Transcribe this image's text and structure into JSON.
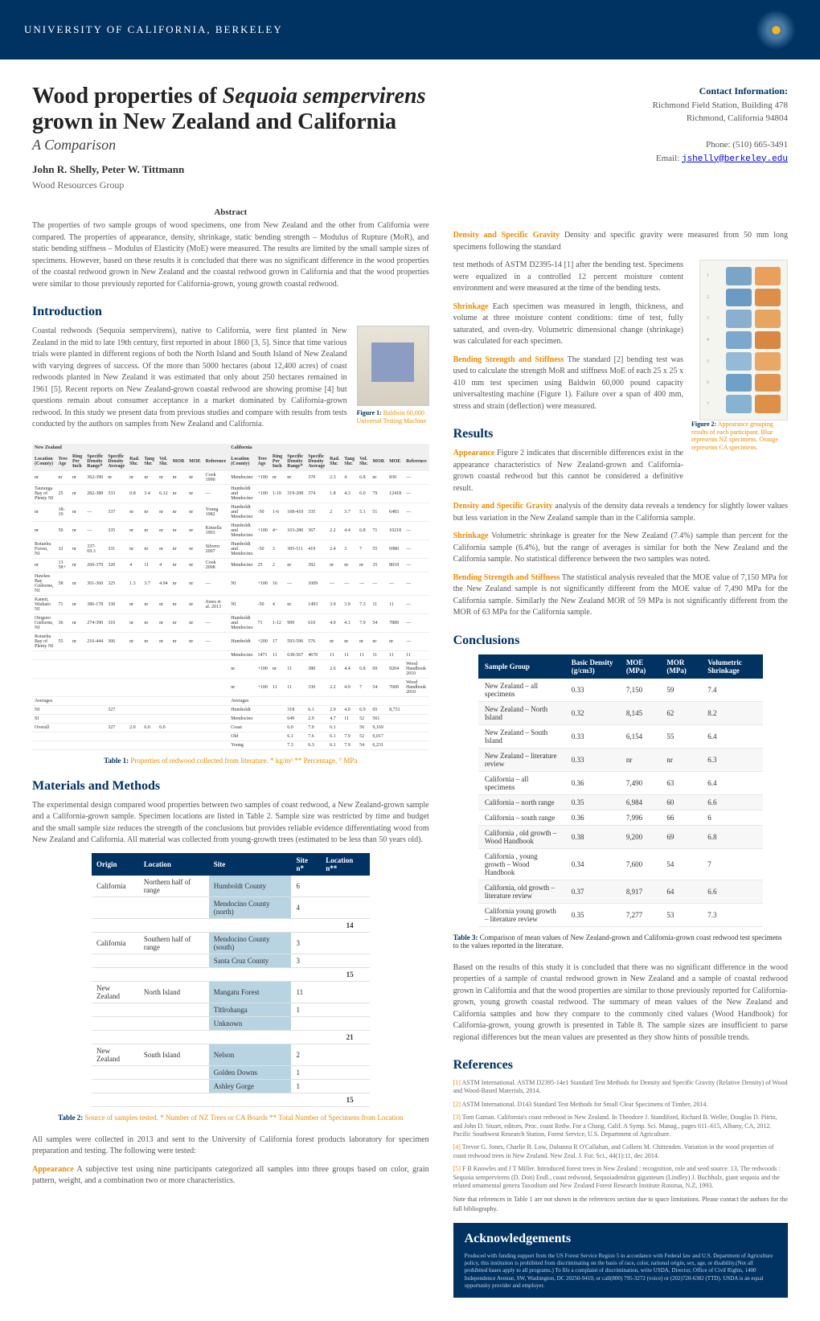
{
  "header": {
    "university": "UNIVERSITY OF CALIFORNIA, BERKELEY"
  },
  "contact": {
    "label": "Contact Information:",
    "addr1": "Richmond Field Station, Building 478",
    "addr2": "Richmond, California 94804",
    "phone": "Phone: (510) 665-3491",
    "email_label": "Email: ",
    "email": "jshelly@berkeley.edu"
  },
  "title_part1": "Wood properties of ",
  "title_species": "Sequoia sempervirens",
  "title_part2": " grown in New Zealand and California",
  "subtitle": "A Comparison",
  "authors": "John R. Shelly, Peter W. Tittmann",
  "affiliation": "Wood Resources Group",
  "abstract_label": "Abstract",
  "abstract": "The properties of two sample groups of wood specimens, one from New Zealand and the other from California were compared. The properties of appearance, density, shrinkage, static bending strength – Modulus of Rupture (MoR), and static bending stiffness – Modulus of Elasticity (MoE) were measured. The results are limited by the small sample sizes of specimens. However, based on these results it is concluded that there was no significant difference in the wood properties of the coastal redwood grown in New Zealand and the coastal redwood grown in California and that the wood properties were similar to those previously reported for California-grown, young growth coastal redwood.",
  "sections": {
    "introduction": "Introduction",
    "materials": "Materials and Methods",
    "results": "Results",
    "conclusions": "Conclusions",
    "references": "References",
    "acknowledgements": "Acknowledgements"
  },
  "introduction": "Coastal redwoods (Sequoia sempervirens), native to California, were first planted in New Zealand in the mid to late 19th century, first reported in about 1860 [3, 5]. Since that time various trials were planted in different regions of both the North Island and South Island of New Zealand with varying degrees of success. Of the more than 5000 hectares (about 12,400 acres) of coast redwoods planted in New Zealand it was estimated that only about 250 hectares remained in 1961 [5]. Recent reports on New Zealand-grown coastal redwood are showing promise [4] but questions remain about consumer acceptance in a market dominated by California-grown redwood. In this study we present data from previous studies and compare with results from tests conducted by the authors on samples from New Zealand and California.",
  "fig1": {
    "label": "Figure 1:",
    "text": "Baldwin 60,000 Universal Testing Machine"
  },
  "fig2": {
    "label": "Figure 2:",
    "text": "Appearance grouping results of each participant. Blue represents NZ specimens. Orange represents CA specimens."
  },
  "table1_caption_label": "Table 1:",
  "table1_caption": " Properties of redwood collected from literature. * kg/m³ ** Percentage, ° MPa",
  "table2_caption_label": "Table 2:",
  "table2_caption": " Source of samples tested. * Number of NZ Trees or CA Boards ** Total Number of Specimens from Location",
  "table3_caption_label": "Table 3:",
  "table3_caption": " Comparison of mean values of New Zealand-grown and California-grown coast redwood test specimens to the values reported in the literature.",
  "materials_p1": "The experimental design compared wood properties between two samples of coast redwood, a New Zealand-grown sample and a California-grown sample. Specimen locations are listed in Table 2. Sample size was restricted by time and budget and the small sample size reduces the strength of the conclusions but provides reliable evidence differentiating wood from New Zealand and California. All material was collected from young-growth trees (estimated to be less than 50 years old).",
  "materials_p2": "All samples were collected in 2013 and sent to the University of California forest products laboratory for specimen preparation and testing. The following were tested:",
  "appearance_label": "Appearance",
  "appearance_text": "   A subjective test using nine participants categorized all samples into three groups based on color, grain pattern, weight, and a combination two or more characteristics.",
  "density_label": "Density and Specific Gravity",
  "density_text": "   Density and specific gravity were measured from 50 mm long specimens following the standard",
  "density_p2": "test methods of ASTM D2395-14 [1] after the bending test. Specimens were equalized in a controlled 12 percent moisture content environment and were measured at the time of the bending tests.",
  "shrinkage_label": "Shrinkage",
  "shrinkage_text": "   Each specimen was measured in length, thickness, and volume at three moisture content conditions: time of test, fully saturated, and oven-dry. Volumetric dimensional change (shrinkage) was calculated for each specimen.",
  "bending_label": "Bending Strength and Stiffness",
  "bending_text": "   The standard [2] bending test was used to calculate the strength MoR and stiffness MoE of each 25 x 25 x 410 mm test specimen using Baldwin 60,000 pound capacity universaltesting machine (Figure 1). Failure over a span of 400 mm, stress and strain (deflection) were measured.",
  "results_appearance_label": "Appearance",
  "results_appearance": "   Figure 2 indicates that discernible differences exist in the appearance characteristics of New Zealand-grown and California-grown coastal redwood but this cannot be considered a definitive result.",
  "results_density_label": "Density and Specific Gravity",
  "results_density": "   analysis of the density data reveals a tendency for slightly lower values but less variation in the New Zealand sample than in the California sample.",
  "results_shrinkage_label": "Shrinkage",
  "results_shrinkage": "   Volumetric shrinkage is greater for the New Zealand (7.4%) sample than percent for the California sample (6.4%), but the range of averages is similar for both the New Zealand and the California sample. No statistical difference between the two samples was noted.",
  "results_bending_label": "Bending Strength and Stiffness",
  "results_bending": "   The statistical analysis revealed that the MOE value of 7,150 MPa for the New Zealand sample is not significantly different from the MOE value of 7,490 MPa for the California sample. Similarly the New Zealand MOR of 59 MPa is not significantly different from the MOR of 63 MPa for the California sample.",
  "conclusions_text": "Based on the results of this study it is concluded that there was no significant difference in the wood properties of a sample of coastal redwood grown in New Zealand and a sample of coastal redwood grown in California and that the wood properties are similar to those previously reported for California-grown, young growth coastal redwood. The summary of mean values of the New Zealand and California samples and how they compare to the commonly cited values (Wood Handbook) for California-grown, young growth is presented in Table 8. The sample sizes are insufficient to parse regional differences but the mean values are presented as they show hints of possible trends.",
  "loc_table": {
    "headers": [
      "Origin",
      "Location",
      "Site",
      "Site n*",
      "Location n**"
    ],
    "rows": [
      [
        "California",
        "Northern half of range",
        "Humboldt County",
        "6",
        ""
      ],
      [
        "",
        "",
        "Mendocino County (north)",
        "4",
        ""
      ],
      [
        "",
        "",
        "",
        "",
        "14"
      ],
      [
        "California",
        "Southern half of range",
        "Mendocino County (south)",
        "3",
        ""
      ],
      [
        "",
        "",
        "Santa Cruz County",
        "3",
        ""
      ],
      [
        "",
        "",
        "",
        "",
        "15"
      ],
      [
        "New Zealand",
        "North Island",
        "Mangatu Forest",
        "11",
        ""
      ],
      [
        "",
        "",
        "Tītīrohanga",
        "1",
        ""
      ],
      [
        "",
        "",
        "Unknown",
        "",
        ""
      ],
      [
        "",
        "",
        "",
        "",
        "21"
      ],
      [
        "New Zealand",
        "South Island",
        "Nelson",
        "2",
        ""
      ],
      [
        "",
        "",
        "Golden Downs",
        "1",
        ""
      ],
      [
        "",
        "",
        "Ashley Gorge",
        "1",
        ""
      ],
      [
        "",
        "",
        "",
        "",
        "15"
      ]
    ]
  },
  "summary_table": {
    "headers": [
      "Sample Group",
      "Basic Density (g/cm3)",
      "MOE (MPa)",
      "MOR (MPa)",
      "Volumetric Shrinkage"
    ],
    "rows": [
      [
        "New Zealand – all specimens",
        "0.33",
        "7,150",
        "59",
        "7.4"
      ],
      [
        "New Zealand – North Island",
        "0.32",
        "8,145",
        "62",
        "8.2"
      ],
      [
        "New Zealand – South Island",
        "0.33",
        "6,154",
        "55",
        "6.4"
      ],
      [
        "New Zealand – literature review",
        "0.33",
        "nr",
        "nr",
        "6.3"
      ],
      [
        "California – all specimens",
        "0.36",
        "7,490",
        "63",
        "6.4"
      ],
      [
        "California – north range",
        "0.35",
        "6,984",
        "60",
        "6.6"
      ],
      [
        "California – south range",
        "0.36",
        "7,996",
        "66",
        "6"
      ],
      [
        "California , old growth – Wood Handbook",
        "0.38",
        "9,200",
        "69",
        "6.8"
      ],
      [
        "California , young growth – Wood Handbook",
        "0.34",
        "7,600",
        "54",
        "7"
      ],
      [
        "California, old growth – literature review",
        "0.37",
        "8,917",
        "64",
        "6.6"
      ],
      [
        "California young growth – literature review",
        "0.35",
        "7,277",
        "53",
        "7.3"
      ]
    ]
  },
  "references": [
    "[1] ASTM International. ASTM D2395-14e1 Standard Test Methods for Density and Specific Gravity (Relative Density) of Wood and Wood-Based Materials, 2014.",
    "[2] ASTM International. D143 Standard Test Methods for Small Clear Specimens of Timber, 2014.",
    "[3] Tom Gaman. California's coast redwood in New Zealand. In Theodore J. Standiford, Richard B. Weller, Douglas D. Piirto, and John D. Stuart, editors, Proc. coast Redw. For a Chang. Calif. A Symp. Sci. Manag., pages 611–615, Albany, CA, 2012. Pacific Southwest Research Station, Forest Service, U.S. Department of Agriculture.",
    "[4] Trevor G. Jones, Charlie B. Low, Dahanna R O'Callahan, and Colleen M. Chittenden. Variation in the wood properties of coast redwood trees in New Zealand. New Zeal. J. For. Sci., 44(1):11, dec 2014.",
    "[5] F B Knowles and J T Miller. Introduced forest trees in New Zealand : recognition, role and seed source. 13, The redwoods : Sequoia sempervirens (D. Don) Endl., coast redwood, Sequoiadendron giganteum (Lindley) J. Buchholz, giant sequoia and the related ornamental genera Taxodium and New Zealand Forest Research Institute Rotorua, N.Z, 1993."
  ],
  "ref_note": "Note that references in Table 1 are not shown in the references section due to space limitations. Please contact the authors for the full bibliography.",
  "ack_text": "Produced with funding support from the US Forest Service Region 5 in accordance with Federal law and U.S. Department of Agriculture policy, this institution is prohibited from discriminating on the basis of race, color, national origin, sex, age, or disability.(Not all prohibited bases apply to all programs.) To file a complaint of discrimination, write USDA, Director, Office of Civil Rights, 1400 Independence Avenue, SW, Washington, DC 20250-9410, or call(800) 795-3272 (voice) or (202)720-6382 (TTD). USDA is an equal opportunity provider and employer.",
  "swatches": {
    "colors": [
      {
        "l": "#7aa5c9",
        "r": "#e8a05c"
      },
      {
        "l": "#6b9bc4",
        "r": "#dd8f4a"
      },
      {
        "l": "#8ab0d0",
        "r": "#e8a560"
      },
      {
        "l": "#7ba8cc",
        "r": "#d98844"
      },
      {
        "l": "#95bad6",
        "r": "#eaa866"
      },
      {
        "l": "#6fa0c8",
        "r": "#e09550"
      },
      {
        "l": "#88b2d2",
        "r": "#df9048"
      }
    ]
  }
}
